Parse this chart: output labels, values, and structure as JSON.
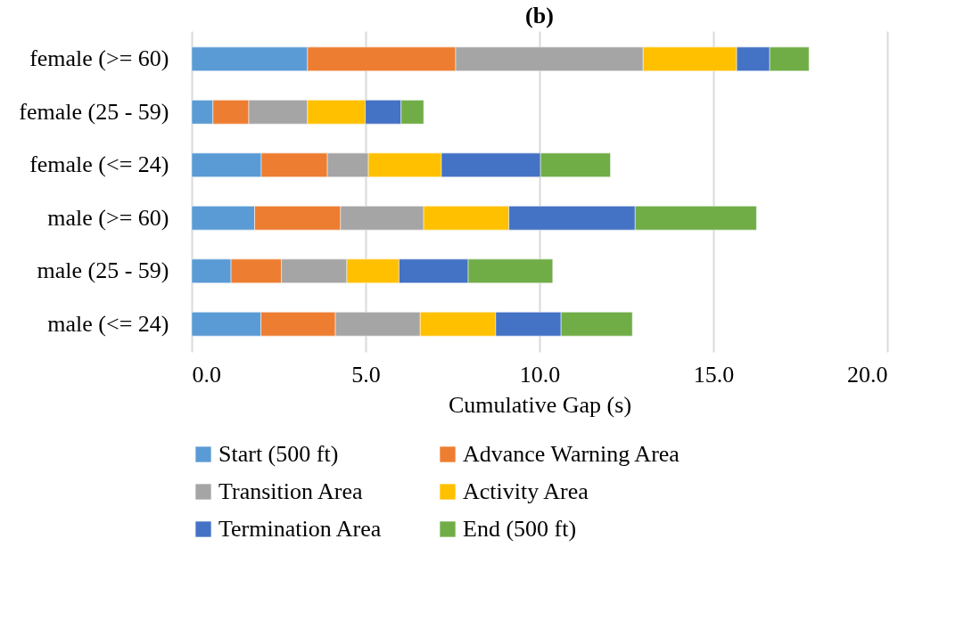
{
  "chart_data": {
    "type": "bar",
    "orientation": "horizontal",
    "stacked": true,
    "title": "(b)",
    "xlabel": "Cumulative Gap (s)",
    "categories": [
      "female (>= 60)",
      "female (25 - 59)",
      "female (<= 24)",
      "male (>= 60)",
      "male (25 - 59)",
      "male (<= 24)"
    ],
    "series": [
      {
        "name": "Start (500 ft)",
        "color": "#5b9bd5",
        "values": [
          3.33,
          0.61,
          2.0,
          1.81,
          1.13,
          1.99
        ]
      },
      {
        "name": "Advance Warning Area",
        "color": "#ed7d31",
        "values": [
          4.26,
          1.03,
          1.9,
          2.47,
          1.45,
          2.14
        ]
      },
      {
        "name": "Transition Area",
        "color": "#a5a5a5",
        "values": [
          5.39,
          1.69,
          1.18,
          2.39,
          1.88,
          2.44
        ]
      },
      {
        "name": "Activity Area",
        "color": "#ffc000",
        "values": [
          2.69,
          1.66,
          2.1,
          2.45,
          1.5,
          2.17
        ]
      },
      {
        "name": "Termination Area",
        "color": "#4472c4",
        "values": [
          0.95,
          1.03,
          2.85,
          3.63,
          1.99,
          1.88
        ]
      },
      {
        "name": "End (500 ft)",
        "color": "#70ad47",
        "values": [
          1.13,
          0.65,
          2.01,
          3.49,
          2.43,
          2.05
        ]
      }
    ],
    "xlim": [
      0,
      20
    ],
    "xticks": [
      {
        "value": 0,
        "label": "0.0"
      },
      {
        "value": 5,
        "label": "5.0"
      },
      {
        "value": 10,
        "label": "10.0"
      },
      {
        "value": 15,
        "label": "15.0"
      },
      {
        "value": 20,
        "label": "20.0"
      }
    ],
    "grid": "x",
    "legend": "bottom"
  }
}
